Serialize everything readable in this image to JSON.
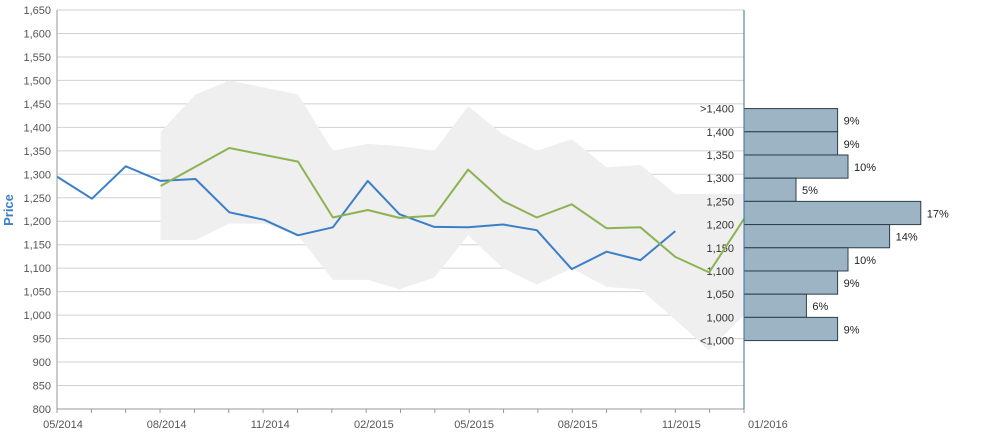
{
  "colors": {
    "actual": "#3a7fc8",
    "forecast": "#8cb352",
    "band": "#efefef",
    "bar": "#9db4c4",
    "bar_border": "#2b3f4c",
    "grid": "#d0d0d0",
    "ylabel": "#3a7fc8"
  },
  "chart_data": {
    "type": "line",
    "ylabel": "Price",
    "ylim": [
      800,
      1650
    ],
    "y_ticks": [
      "800",
      "850",
      "900",
      "950",
      "1,000",
      "1,050",
      "1,100",
      "1,150",
      "1,200",
      "1,250",
      "1,300",
      "1,350",
      "1,400",
      "1,450",
      "1,500",
      "1,550",
      "1,600",
      "1,650"
    ],
    "x_ticks": [
      "05/2014",
      "08/2014",
      "11/2014",
      "02/2015",
      "05/2015",
      "08/2015",
      "11/2015",
      "01/2016"
    ],
    "grid": true,
    "series": [
      {
        "role": "actual",
        "points": [
          [
            "2014-05-01",
            1295
          ],
          [
            "2014-06-01",
            1248
          ],
          [
            "2014-07-01",
            1317
          ],
          [
            "2014-08-01",
            1286
          ],
          [
            "2014-09-01",
            1290
          ],
          [
            "2014-10-01",
            1219
          ],
          [
            "2014-11-01",
            1203
          ],
          [
            "2014-12-01",
            1170
          ],
          [
            "2015-01-01",
            1187
          ],
          [
            "2015-02-01",
            1286
          ],
          [
            "2015-03-01",
            1215
          ],
          [
            "2015-04-01",
            1188
          ],
          [
            "2015-05-01",
            1187
          ],
          [
            "2015-06-01",
            1193
          ],
          [
            "2015-07-01",
            1181
          ],
          [
            "2015-08-01",
            1098
          ],
          [
            "2015-09-01",
            1135
          ],
          [
            "2015-10-01",
            1117
          ],
          [
            "2015-11-01",
            1179
          ]
        ]
      },
      {
        "role": "forecast",
        "points": [
          [
            "2014-08-01",
            1275
          ],
          [
            "2014-10-01",
            1356
          ],
          [
            "2014-12-01",
            1327
          ],
          [
            "2015-01-01",
            1208
          ],
          [
            "2015-02-01",
            1224
          ],
          [
            "2015-03-01",
            1207
          ],
          [
            "2015-04-01",
            1212
          ],
          [
            "2015-05-01",
            1310
          ],
          [
            "2015-06-01",
            1243
          ],
          [
            "2015-07-01",
            1208
          ],
          [
            "2015-08-01",
            1236
          ],
          [
            "2015-09-01",
            1185
          ],
          [
            "2015-10-01",
            1187
          ],
          [
            "2015-11-01",
            1124
          ],
          [
            "2015-12-01",
            1091
          ],
          [
            "2016-01-01",
            1205
          ]
        ]
      }
    ],
    "band": {
      "upper": [
        [
          "2014-08-01",
          1390
        ],
        [
          "2014-09-01",
          1470
        ],
        [
          "2014-10-01",
          1500
        ],
        [
          "2014-11-01",
          1485
        ],
        [
          "2014-12-01",
          1470
        ],
        [
          "2015-01-01",
          1350
        ],
        [
          "2015-02-01",
          1365
        ],
        [
          "2015-03-01",
          1360
        ],
        [
          "2015-04-01",
          1350
        ],
        [
          "2015-05-01",
          1445
        ],
        [
          "2015-06-01",
          1385
        ],
        [
          "2015-07-01",
          1350
        ],
        [
          "2015-08-01",
          1375
        ],
        [
          "2015-09-01",
          1315
        ],
        [
          "2015-10-01",
          1320
        ],
        [
          "2015-11-01",
          1258
        ],
        [
          "2015-12-01",
          1258
        ],
        [
          "2016-01-01",
          1258
        ]
      ],
      "lower": [
        [
          "2014-08-01",
          1160
        ],
        [
          "2014-09-01",
          1160
        ],
        [
          "2014-10-01",
          1195
        ],
        [
          "2014-11-01",
          1195
        ],
        [
          "2014-12-01",
          1170
        ],
        [
          "2015-01-01",
          1075
        ],
        [
          "2015-02-01",
          1075
        ],
        [
          "2015-03-01",
          1055
        ],
        [
          "2015-04-01",
          1080
        ],
        [
          "2015-05-01",
          1170
        ],
        [
          "2015-06-01",
          1100
        ],
        [
          "2015-07-01",
          1065
        ],
        [
          "2015-08-01",
          1100
        ],
        [
          "2015-09-01",
          1060
        ],
        [
          "2015-10-01",
          1055
        ],
        [
          "2015-11-01",
          990
        ],
        [
          "2015-12-01",
          925
        ],
        [
          "2016-01-01",
          1000
        ]
      ]
    },
    "distribution": {
      "type": "bar",
      "orientation": "horizontal",
      "bins": [
        {
          "label": ">1,400",
          "value": 9
        },
        {
          "label": "1,400",
          "value": 9
        },
        {
          "label": "1,350",
          "value": 10
        },
        {
          "label": "1,300",
          "value": 5
        },
        {
          "label": "1,250",
          "value": 17
        },
        {
          "label": "1,200",
          "value": 14
        },
        {
          "label": "1,150",
          "value": 10
        },
        {
          "label": "1,100",
          "value": 9
        },
        {
          "label": "1,050",
          "value": 6
        },
        {
          "label": "1,000",
          "value": 9
        },
        {
          "label": "<1,000",
          "value": null
        }
      ],
      "value_suffix": "%"
    }
  }
}
